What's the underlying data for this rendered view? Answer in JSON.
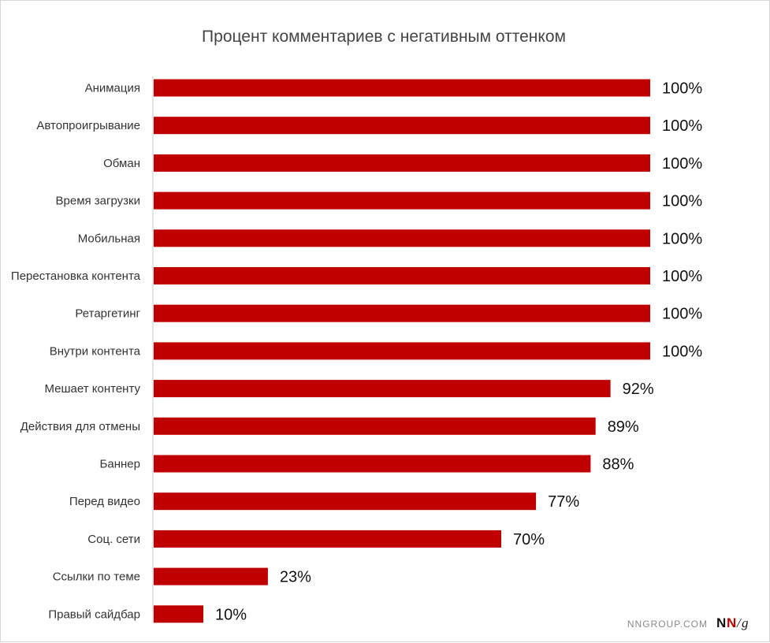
{
  "chart_data": {
    "type": "bar",
    "orientation": "horizontal",
    "title": "Процент комментариев с негативным оттенком",
    "xlabel": "",
    "ylabel": "",
    "xlim": [
      0,
      100
    ],
    "grid": false,
    "bar_color": "#c00000",
    "categories": [
      "Анимация",
      "Автопроигрывание",
      "Обман",
      "Время загрузки",
      "Мобильная",
      "Перестановка контента",
      "Ретаргетинг",
      "Внутри контента",
      "Мешает контенту",
      "Действия для отмены",
      "Баннер",
      "Перед видео",
      "Соц. сети",
      "Ссылки по теме",
      "Правый сайдбар"
    ],
    "values": [
      100,
      100,
      100,
      100,
      100,
      100,
      100,
      100,
      92,
      89,
      88,
      77,
      70,
      23,
      10
    ],
    "value_labels": [
      "100%",
      "100%",
      "100%",
      "100%",
      "100%",
      "100%",
      "100%",
      "100%",
      "92%",
      "89%",
      "88%",
      "77%",
      "70%",
      "23%",
      "10%"
    ]
  },
  "branding": {
    "site": "NNGROUP.COM",
    "logo_n1": "N",
    "logo_n2": "N",
    "logo_slash": "/",
    "logo_g": "g"
  }
}
